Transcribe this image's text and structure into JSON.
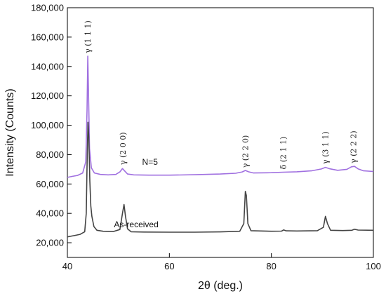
{
  "chart_data": {
    "type": "line",
    "xlabel": "2θ (deg.)",
    "ylabel": "Intensity (Counts)",
    "xlim": [
      40,
      100
    ],
    "ylim": [
      10000,
      180000
    ],
    "x_ticks": [
      40,
      60,
      80,
      100
    ],
    "x_tick_labels": [
      "40",
      "60",
      "80",
      "100"
    ],
    "y_ticks": [
      20000,
      40000,
      60000,
      80000,
      100000,
      120000,
      140000,
      160000,
      180000
    ],
    "y_tick_labels": [
      "20,000",
      "40,000",
      "60,000",
      "80,000",
      "100,000",
      "120,000",
      "140,000",
      "160,000",
      "180,000"
    ],
    "grid": false,
    "series": [
      {
        "label": "N=5",
        "color": "#a070e0",
        "label_x": 56.2,
        "label_y": 73000,
        "points": [
          [
            40,
            64500
          ],
          [
            41,
            65200
          ],
          [
            42,
            65800
          ],
          [
            43,
            67500
          ],
          [
            43.6,
            75000
          ],
          [
            43.85,
            110000
          ],
          [
            44.0,
            147000
          ],
          [
            44.15,
            120000
          ],
          [
            44.35,
            84000
          ],
          [
            44.7,
            71000
          ],
          [
            45.3,
            67500
          ],
          [
            46.5,
            66500
          ],
          [
            48,
            66200
          ],
          [
            49.5,
            66500
          ],
          [
            50.3,
            68200
          ],
          [
            50.8,
            70500
          ],
          [
            51.2,
            69000
          ],
          [
            51.8,
            66800
          ],
          [
            53,
            66200
          ],
          [
            56,
            66000
          ],
          [
            60,
            66000
          ],
          [
            65,
            66300
          ],
          [
            70,
            66800
          ],
          [
            73,
            67300
          ],
          [
            74.3,
            68200
          ],
          [
            74.9,
            69200
          ],
          [
            75.5,
            68300
          ],
          [
            76.5,
            67500
          ],
          [
            80,
            67700
          ],
          [
            82.3,
            68000
          ],
          [
            85,
            68300
          ],
          [
            88,
            69000
          ],
          [
            89.8,
            70200
          ],
          [
            90.6,
            71300
          ],
          [
            91.5,
            70300
          ],
          [
            93,
            69300
          ],
          [
            94.8,
            70000
          ],
          [
            95.7,
            71700
          ],
          [
            96.3,
            72000
          ],
          [
            97,
            70300
          ],
          [
            98,
            69000
          ],
          [
            100,
            68500
          ]
        ]
      },
      {
        "label": "As-received",
        "color": "#444444",
        "label_x": 53.5,
        "label_y": 30500,
        "points": [
          [
            40,
            24000
          ],
          [
            41.5,
            25000
          ],
          [
            42.5,
            25700
          ],
          [
            43.4,
            27500
          ],
          [
            43.7,
            40000
          ],
          [
            43.9,
            80000
          ],
          [
            44.05,
            102000
          ],
          [
            44.2,
            92000
          ],
          [
            44.4,
            62000
          ],
          [
            44.6,
            45000
          ],
          [
            44.8,
            38000
          ],
          [
            45.2,
            31000
          ],
          [
            45.8,
            28500
          ],
          [
            47,
            27800
          ],
          [
            49,
            27600
          ],
          [
            50.3,
            29000
          ],
          [
            50.8,
            40000
          ],
          [
            51.1,
            46000
          ],
          [
            51.4,
            38000
          ],
          [
            51.8,
            29500
          ],
          [
            52.5,
            27500
          ],
          [
            55,
            27300
          ],
          [
            60,
            27200
          ],
          [
            65,
            27200
          ],
          [
            70,
            27400
          ],
          [
            73.8,
            27800
          ],
          [
            74.6,
            33000
          ],
          [
            74.9,
            55000
          ],
          [
            75.1,
            52000
          ],
          [
            75.4,
            33000
          ],
          [
            76,
            28200
          ],
          [
            80,
            27800
          ],
          [
            82,
            27900
          ],
          [
            82.4,
            28700
          ],
          [
            82.9,
            28100
          ],
          [
            85,
            28000
          ],
          [
            89,
            28200
          ],
          [
            90.2,
            30500
          ],
          [
            90.6,
            38000
          ],
          [
            91.0,
            33000
          ],
          [
            91.6,
            28500
          ],
          [
            94,
            28300
          ],
          [
            95.8,
            28500
          ],
          [
            96.3,
            29200
          ],
          [
            97,
            28600
          ],
          [
            100,
            28500
          ]
        ]
      }
    ],
    "peak_labels": [
      {
        "text": "γ (1 1 1)",
        "x": 44.0,
        "y": 149000
      },
      {
        "text": "γ (2 0 0)",
        "x": 50.9,
        "y": 73000
      },
      {
        "text": "γ (2 2 0)",
        "x": 74.9,
        "y": 71000
      },
      {
        "text": "δ (2 1 1)",
        "x": 82.3,
        "y": 70000
      },
      {
        "text": "γ (3 1 1)",
        "x": 90.6,
        "y": 73500
      },
      {
        "text": "γ (2 2 2)",
        "x": 96.1,
        "y": 74000
      }
    ]
  }
}
